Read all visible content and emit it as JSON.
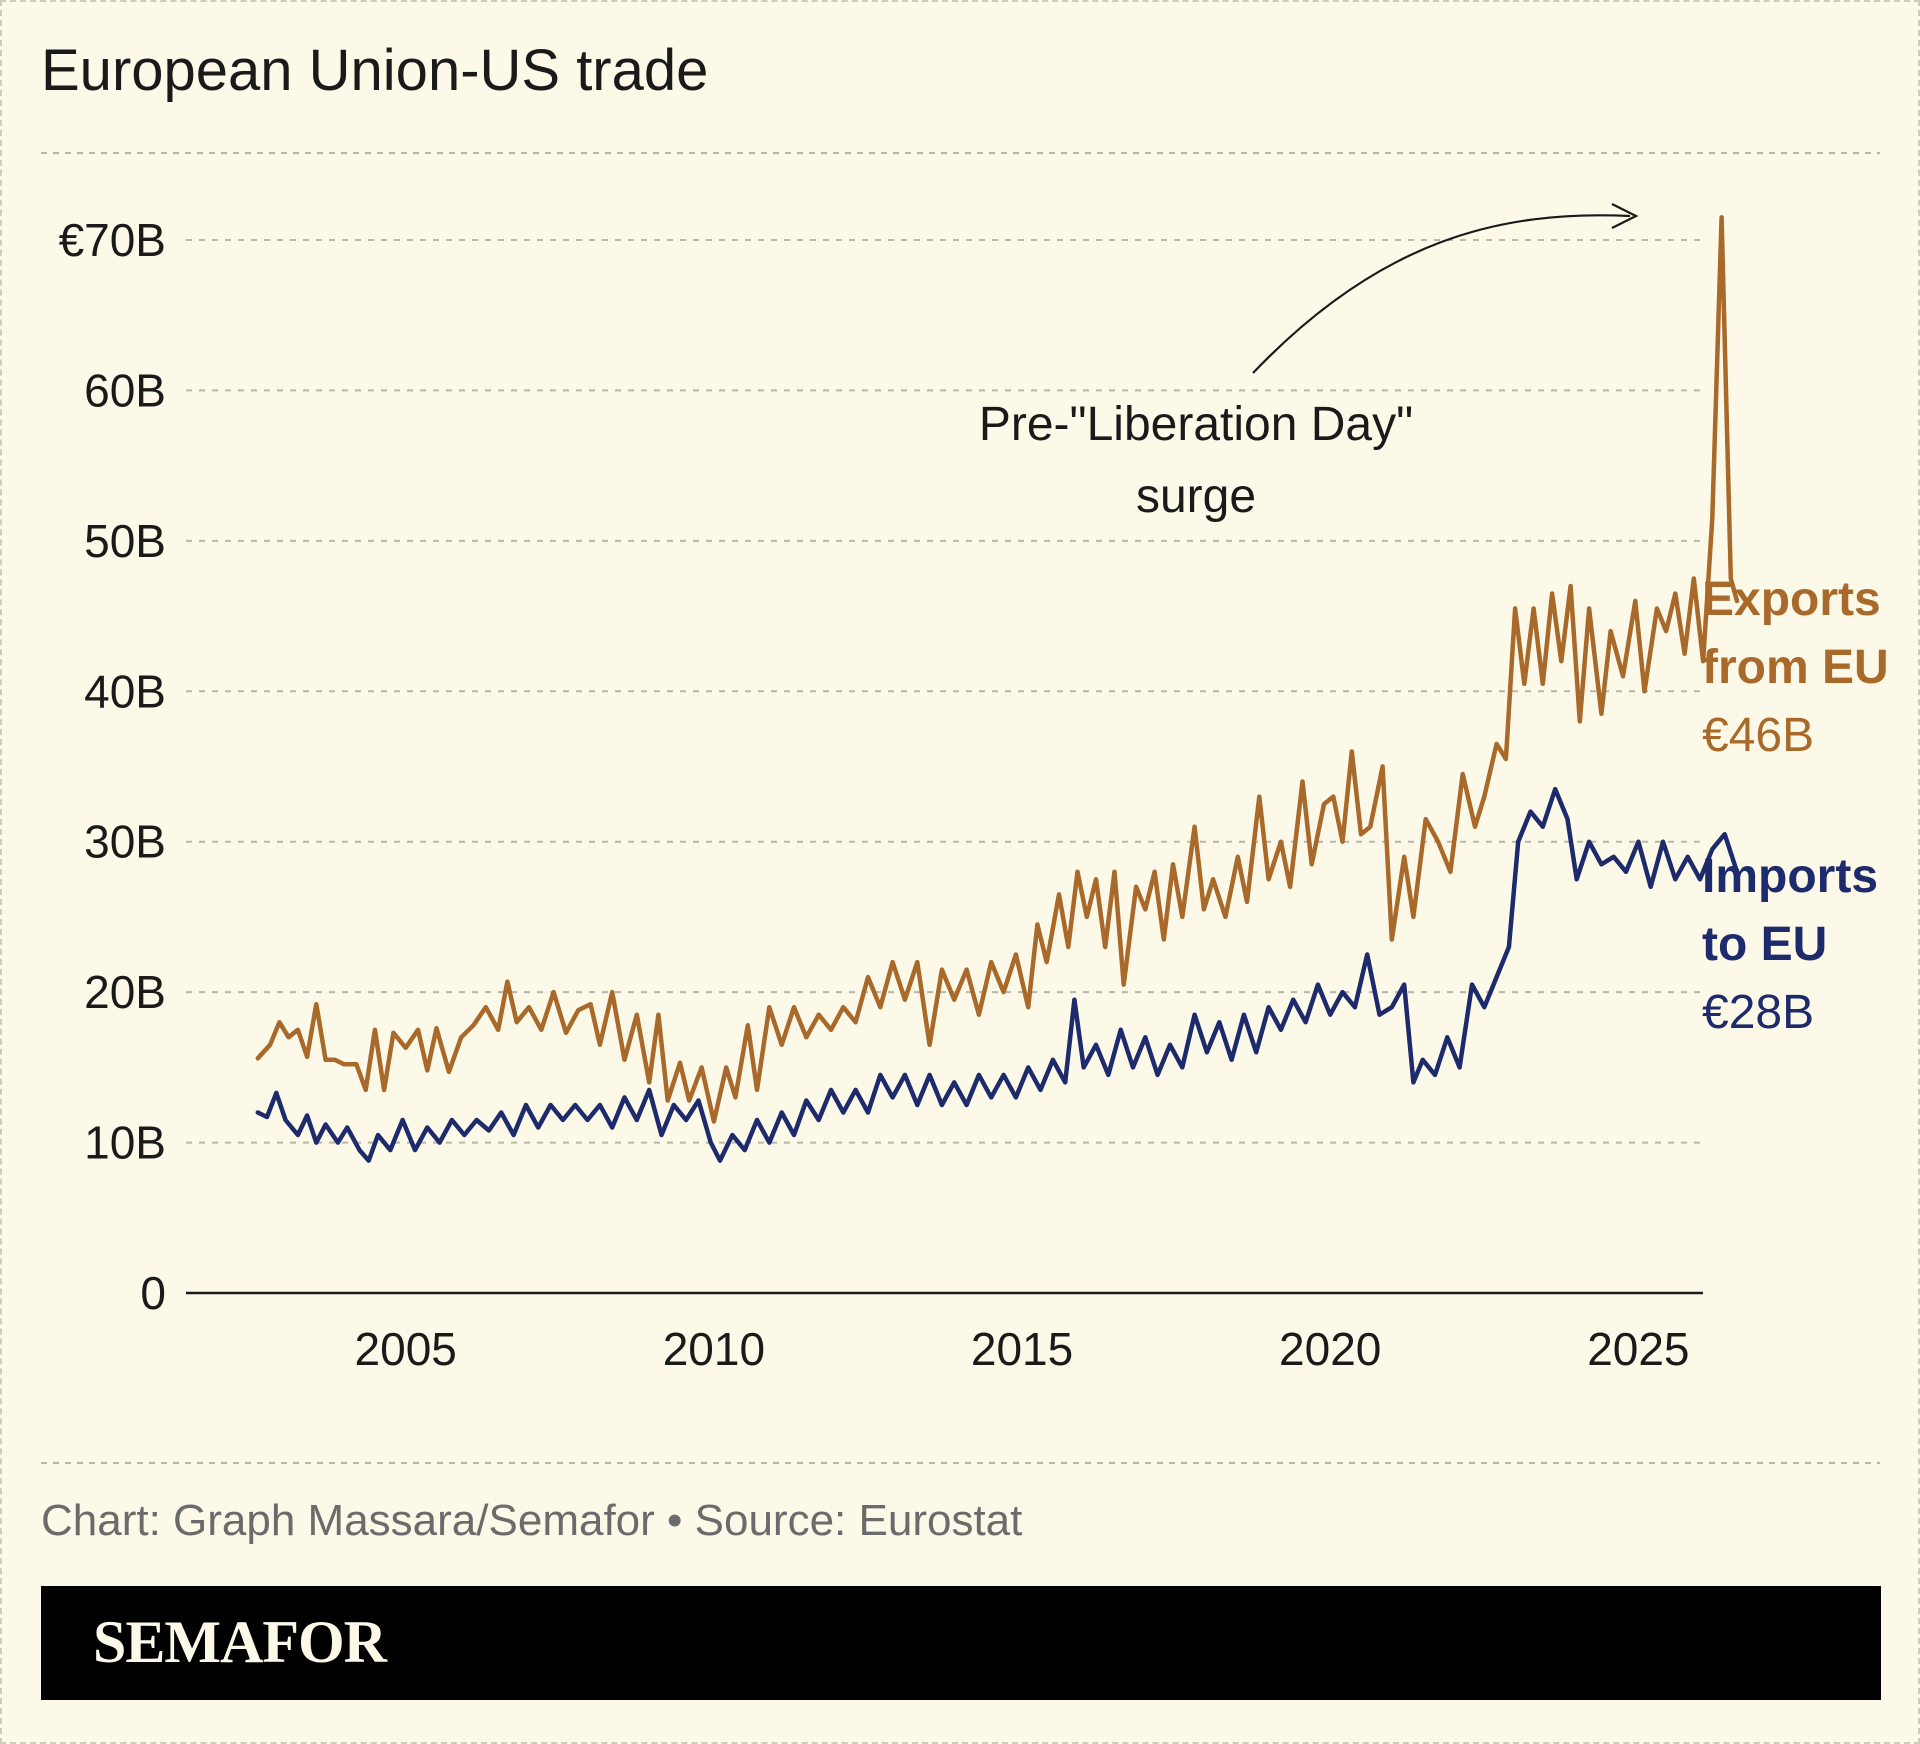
{
  "title": "European Union-US trade",
  "credit": "Chart: Graph Massara/Semafor • Source: Eurostat",
  "brand": "SEMAFOR",
  "annotation": {
    "line1": "Pre-\"Liberation Day\"",
    "line2": "surge"
  },
  "colors": {
    "background": "#fdf9e8",
    "exports": "#a8692a",
    "imports": "#1d2a6b",
    "text": "#1a1a1a",
    "credit": "#6b6b6b",
    "grid": "#b8b6ad"
  },
  "chart_data": {
    "type": "line",
    "title": "European Union-US trade",
    "xlabel": "",
    "ylabel": "",
    "xlim": [
      2001.5,
      2026.0
    ],
    "ylim": [
      0,
      70
    ],
    "x_ticks": [
      {
        "value": 2005,
        "label": "2005"
      },
      {
        "value": 2010,
        "label": "2010"
      },
      {
        "value": 2015,
        "label": "2015"
      },
      {
        "value": 2020,
        "label": "2020"
      },
      {
        "value": 2025,
        "label": "2025"
      }
    ],
    "y_ticks": [
      {
        "value": 0,
        "label": "0"
      },
      {
        "value": 10,
        "label": "10B"
      },
      {
        "value": 20,
        "label": "20B"
      },
      {
        "value": 30,
        "label": "30B"
      },
      {
        "value": 40,
        "label": "40B"
      },
      {
        "value": 50,
        "label": "50B"
      },
      {
        "value": 60,
        "label": "60B"
      },
      {
        "value": 70,
        "label": "€70B"
      }
    ],
    "grid": true,
    "series": [
      {
        "name": "Exports from EU",
        "label_lines": [
          "Exports",
          "from EU"
        ],
        "last_value_label": "€46B",
        "color": "#a8692a",
        "points": [
          [
            2002.6,
            15.6
          ],
          [
            2002.8,
            16.5
          ],
          [
            2002.95,
            18.0
          ],
          [
            2003.1,
            17.0
          ],
          [
            2003.25,
            17.5
          ],
          [
            2003.4,
            15.7
          ],
          [
            2003.55,
            19.2
          ],
          [
            2003.7,
            15.5
          ],
          [
            2003.85,
            15.5
          ],
          [
            2004.0,
            15.2
          ],
          [
            2004.2,
            15.2
          ],
          [
            2004.35,
            13.5
          ],
          [
            2004.5,
            17.5
          ],
          [
            2004.65,
            13.5
          ],
          [
            2004.8,
            17.3
          ],
          [
            2005.0,
            16.3
          ],
          [
            2005.2,
            17.5
          ],
          [
            2005.35,
            14.8
          ],
          [
            2005.5,
            17.6
          ],
          [
            2005.7,
            14.7
          ],
          [
            2005.9,
            17.0
          ],
          [
            2006.1,
            17.8
          ],
          [
            2006.3,
            19.0
          ],
          [
            2006.5,
            17.5
          ],
          [
            2006.65,
            20.7
          ],
          [
            2006.8,
            18.0
          ],
          [
            2007.0,
            19.0
          ],
          [
            2007.2,
            17.5
          ],
          [
            2007.4,
            20.0
          ],
          [
            2007.6,
            17.3
          ],
          [
            2007.8,
            18.8
          ],
          [
            2008.0,
            19.2
          ],
          [
            2008.15,
            16.5
          ],
          [
            2008.35,
            20.0
          ],
          [
            2008.55,
            15.5
          ],
          [
            2008.75,
            18.5
          ],
          [
            2008.95,
            14.0
          ],
          [
            2009.1,
            18.5
          ],
          [
            2009.25,
            12.8
          ],
          [
            2009.45,
            15.3
          ],
          [
            2009.6,
            12.8
          ],
          [
            2009.8,
            15.0
          ],
          [
            2010.0,
            11.4
          ],
          [
            2010.2,
            15.0
          ],
          [
            2010.35,
            13.0
          ],
          [
            2010.55,
            17.8
          ],
          [
            2010.7,
            13.5
          ],
          [
            2010.9,
            19.0
          ],
          [
            2011.1,
            16.5
          ],
          [
            2011.3,
            19.0
          ],
          [
            2011.5,
            17.0
          ],
          [
            2011.7,
            18.5
          ],
          [
            2011.9,
            17.5
          ],
          [
            2012.1,
            19.0
          ],
          [
            2012.3,
            18.0
          ],
          [
            2012.5,
            21.0
          ],
          [
            2012.7,
            19.0
          ],
          [
            2012.9,
            22.0
          ],
          [
            2013.1,
            19.5
          ],
          [
            2013.3,
            22.0
          ],
          [
            2013.5,
            16.5
          ],
          [
            2013.7,
            21.5
          ],
          [
            2013.9,
            19.5
          ],
          [
            2014.1,
            21.5
          ],
          [
            2014.3,
            18.5
          ],
          [
            2014.5,
            22.0
          ],
          [
            2014.7,
            20.0
          ],
          [
            2014.9,
            22.5
          ],
          [
            2015.1,
            19.0
          ],
          [
            2015.25,
            24.5
          ],
          [
            2015.4,
            22.0
          ],
          [
            2015.6,
            26.5
          ],
          [
            2015.75,
            23.0
          ],
          [
            2015.9,
            28.0
          ],
          [
            2016.05,
            25.0
          ],
          [
            2016.2,
            27.5
          ],
          [
            2016.35,
            23.0
          ],
          [
            2016.5,
            28.0
          ],
          [
            2016.65,
            20.5
          ],
          [
            2016.85,
            27.0
          ],
          [
            2017.0,
            25.5
          ],
          [
            2017.15,
            28.0
          ],
          [
            2017.3,
            23.5
          ],
          [
            2017.45,
            28.5
          ],
          [
            2017.6,
            25.0
          ],
          [
            2017.8,
            31.0
          ],
          [
            2017.95,
            25.5
          ],
          [
            2018.1,
            27.5
          ],
          [
            2018.3,
            25.0
          ],
          [
            2018.5,
            29.0
          ],
          [
            2018.65,
            26.0
          ],
          [
            2018.85,
            33.0
          ],
          [
            2019.0,
            27.5
          ],
          [
            2019.2,
            30.0
          ],
          [
            2019.35,
            27.0
          ],
          [
            2019.55,
            34.0
          ],
          [
            2019.7,
            28.5
          ],
          [
            2019.9,
            32.5
          ],
          [
            2020.05,
            33.0
          ],
          [
            2020.2,
            30.0
          ],
          [
            2020.35,
            36.0
          ],
          [
            2020.5,
            30.5
          ],
          [
            2020.65,
            31.0
          ],
          [
            2020.85,
            35.0
          ],
          [
            2021.0,
            23.5
          ],
          [
            2021.2,
            29.0
          ],
          [
            2021.35,
            25.0
          ],
          [
            2021.55,
            31.5
          ],
          [
            2021.75,
            30.0
          ],
          [
            2021.95,
            28.0
          ],
          [
            2022.15,
            34.5
          ],
          [
            2022.35,
            31.0
          ],
          [
            2022.5,
            33.0
          ],
          [
            2022.7,
            36.5
          ],
          [
            2022.85,
            35.5
          ],
          [
            2023.0,
            45.5
          ],
          [
            2023.15,
            40.5
          ],
          [
            2023.3,
            45.5
          ],
          [
            2023.45,
            40.5
          ],
          [
            2023.6,
            46.5
          ],
          [
            2023.75,
            42.0
          ],
          [
            2023.9,
            47.0
          ],
          [
            2024.05,
            38.0
          ],
          [
            2024.2,
            45.5
          ],
          [
            2024.4,
            38.5
          ],
          [
            2024.55,
            44.0
          ],
          [
            2024.75,
            41.0
          ],
          [
            2024.95,
            46.0
          ],
          [
            2025.1,
            40.0
          ],
          [
            2025.3,
            45.5
          ],
          [
            2025.45,
            44.0
          ],
          [
            2025.6,
            46.5
          ],
          [
            2025.75,
            42.5
          ],
          [
            2025.9,
            47.5
          ],
          [
            2026.05,
            42.0
          ],
          [
            2026.2,
            51.5
          ],
          [
            2026.35,
            71.5
          ],
          [
            2026.5,
            47.5
          ],
          [
            2026.6,
            46.0
          ]
        ]
      },
      {
        "name": "Imports to EU",
        "label_lines": [
          "Imports",
          "to EU"
        ],
        "last_value_label": "€28B",
        "color": "#1d2a6b",
        "points": [
          [
            2002.6,
            12.0
          ],
          [
            2002.75,
            11.7
          ],
          [
            2002.9,
            13.3
          ],
          [
            2003.05,
            11.5
          ],
          [
            2003.25,
            10.5
          ],
          [
            2003.4,
            11.8
          ],
          [
            2003.55,
            10.0
          ],
          [
            2003.7,
            11.2
          ],
          [
            2003.9,
            10.0
          ],
          [
            2004.05,
            11.0
          ],
          [
            2004.25,
            9.5
          ],
          [
            2004.4,
            8.8
          ],
          [
            2004.55,
            10.5
          ],
          [
            2004.75,
            9.5
          ],
          [
            2004.95,
            11.5
          ],
          [
            2005.15,
            9.5
          ],
          [
            2005.35,
            11.0
          ],
          [
            2005.55,
            10.0
          ],
          [
            2005.75,
            11.5
          ],
          [
            2005.95,
            10.5
          ],
          [
            2006.15,
            11.5
          ],
          [
            2006.35,
            10.8
          ],
          [
            2006.55,
            12.0
          ],
          [
            2006.75,
            10.5
          ],
          [
            2006.95,
            12.5
          ],
          [
            2007.15,
            11.0
          ],
          [
            2007.35,
            12.5
          ],
          [
            2007.55,
            11.5
          ],
          [
            2007.75,
            12.5
          ],
          [
            2007.95,
            11.5
          ],
          [
            2008.15,
            12.5
          ],
          [
            2008.35,
            11.0
          ],
          [
            2008.55,
            13.0
          ],
          [
            2008.75,
            11.5
          ],
          [
            2008.95,
            13.5
          ],
          [
            2009.15,
            10.5
          ],
          [
            2009.35,
            12.5
          ],
          [
            2009.55,
            11.5
          ],
          [
            2009.75,
            12.8
          ],
          [
            2009.95,
            10.0
          ],
          [
            2010.1,
            8.8
          ],
          [
            2010.3,
            10.5
          ],
          [
            2010.5,
            9.5
          ],
          [
            2010.7,
            11.5
          ],
          [
            2010.9,
            10.0
          ],
          [
            2011.1,
            12.0
          ],
          [
            2011.3,
            10.5
          ],
          [
            2011.5,
            12.8
          ],
          [
            2011.7,
            11.5
          ],
          [
            2011.9,
            13.5
          ],
          [
            2012.1,
            12.0
          ],
          [
            2012.3,
            13.5
          ],
          [
            2012.5,
            12.0
          ],
          [
            2012.7,
            14.5
          ],
          [
            2012.9,
            13.0
          ],
          [
            2013.1,
            14.5
          ],
          [
            2013.3,
            12.5
          ],
          [
            2013.5,
            14.5
          ],
          [
            2013.7,
            12.5
          ],
          [
            2013.9,
            14.0
          ],
          [
            2014.1,
            12.5
          ],
          [
            2014.3,
            14.5
          ],
          [
            2014.5,
            13.0
          ],
          [
            2014.7,
            14.5
          ],
          [
            2014.9,
            13.0
          ],
          [
            2015.1,
            15.0
          ],
          [
            2015.3,
            13.5
          ],
          [
            2015.5,
            15.5
          ],
          [
            2015.7,
            14.0
          ],
          [
            2015.85,
            19.5
          ],
          [
            2016.0,
            15.0
          ],
          [
            2016.2,
            16.5
          ],
          [
            2016.4,
            14.5
          ],
          [
            2016.6,
            17.5
          ],
          [
            2016.8,
            15.0
          ],
          [
            2017.0,
            17.0
          ],
          [
            2017.2,
            14.5
          ],
          [
            2017.4,
            16.5
          ],
          [
            2017.6,
            15.0
          ],
          [
            2017.8,
            18.5
          ],
          [
            2018.0,
            16.0
          ],
          [
            2018.2,
            18.0
          ],
          [
            2018.4,
            15.5
          ],
          [
            2018.6,
            18.5
          ],
          [
            2018.8,
            16.0
          ],
          [
            2019.0,
            19.0
          ],
          [
            2019.2,
            17.5
          ],
          [
            2019.4,
            19.5
          ],
          [
            2019.6,
            18.0
          ],
          [
            2019.8,
            20.5
          ],
          [
            2020.0,
            18.5
          ],
          [
            2020.2,
            20.0
          ],
          [
            2020.4,
            19.0
          ],
          [
            2020.6,
            22.5
          ],
          [
            2020.8,
            18.5
          ],
          [
            2021.0,
            19.0
          ],
          [
            2021.2,
            20.5
          ],
          [
            2021.35,
            14.0
          ],
          [
            2021.5,
            15.5
          ],
          [
            2021.7,
            14.5
          ],
          [
            2021.9,
            17.0
          ],
          [
            2022.1,
            15.0
          ],
          [
            2022.3,
            20.5
          ],
          [
            2022.5,
            19.0
          ],
          [
            2022.7,
            21.0
          ],
          [
            2022.9,
            23.0
          ],
          [
            2023.05,
            30.0
          ],
          [
            2023.25,
            32.0
          ],
          [
            2023.45,
            31.0
          ],
          [
            2023.65,
            33.5
          ],
          [
            2023.85,
            31.5
          ],
          [
            2024.0,
            27.5
          ],
          [
            2024.2,
            30.0
          ],
          [
            2024.4,
            28.5
          ],
          [
            2024.6,
            29.0
          ],
          [
            2024.8,
            28.0
          ],
          [
            2025.0,
            30.0
          ],
          [
            2025.2,
            27.0
          ],
          [
            2025.4,
            30.0
          ],
          [
            2025.6,
            27.5
          ],
          [
            2025.8,
            29.0
          ],
          [
            2026.0,
            27.5
          ],
          [
            2026.2,
            29.5
          ],
          [
            2026.4,
            30.5
          ],
          [
            2026.6,
            28.0
          ]
        ]
      }
    ]
  }
}
